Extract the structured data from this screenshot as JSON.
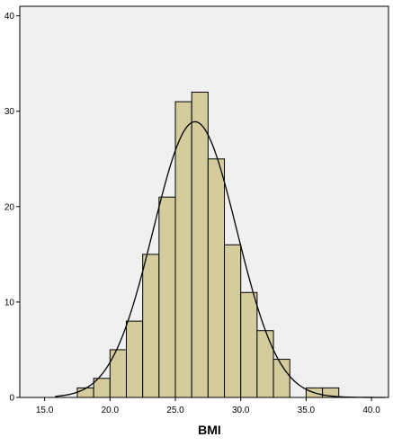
{
  "chart_data": {
    "type": "bar",
    "subtype": "histogram",
    "title": "",
    "xlabel": "BMI",
    "ylabel": "",
    "xlim": [
      13.1,
      41.3
    ],
    "ylim": [
      0,
      41
    ],
    "x_ticks": [
      "15.0",
      "20.0",
      "25.0",
      "30.0",
      "35.0",
      "40.0"
    ],
    "y_ticks": [
      "0",
      "10",
      "20",
      "30",
      "40"
    ],
    "bin_width": 1.25,
    "bins": [
      {
        "start": 17.5,
        "end": 18.75,
        "count": 1
      },
      {
        "start": 18.75,
        "end": 20.0,
        "count": 2
      },
      {
        "start": 20.0,
        "end": 21.25,
        "count": 5
      },
      {
        "start": 21.25,
        "end": 22.5,
        "count": 8
      },
      {
        "start": 22.5,
        "end": 23.75,
        "count": 15
      },
      {
        "start": 23.75,
        "end": 25.0,
        "count": 21
      },
      {
        "start": 25.0,
        "end": 26.25,
        "count": 31
      },
      {
        "start": 26.25,
        "end": 27.5,
        "count": 32
      },
      {
        "start": 27.5,
        "end": 28.75,
        "count": 25
      },
      {
        "start": 28.75,
        "end": 30.0,
        "count": 16
      },
      {
        "start": 30.0,
        "end": 31.25,
        "count": 11
      },
      {
        "start": 31.25,
        "end": 32.5,
        "count": 7
      },
      {
        "start": 32.5,
        "end": 33.75,
        "count": 4
      },
      {
        "start": 35.0,
        "end": 36.25,
        "count": 1
      },
      {
        "start": 36.25,
        "end": 37.5,
        "count": 1
      }
    ],
    "normal_curve": {
      "mean": 26.5,
      "std": 3.2,
      "peak": 28.9
    },
    "grid": false,
    "colors": {
      "plot_background": "#f0f0f0",
      "bar_fill": "#d4cc9c",
      "bar_stroke": "#000000",
      "curve": "#000000"
    }
  }
}
